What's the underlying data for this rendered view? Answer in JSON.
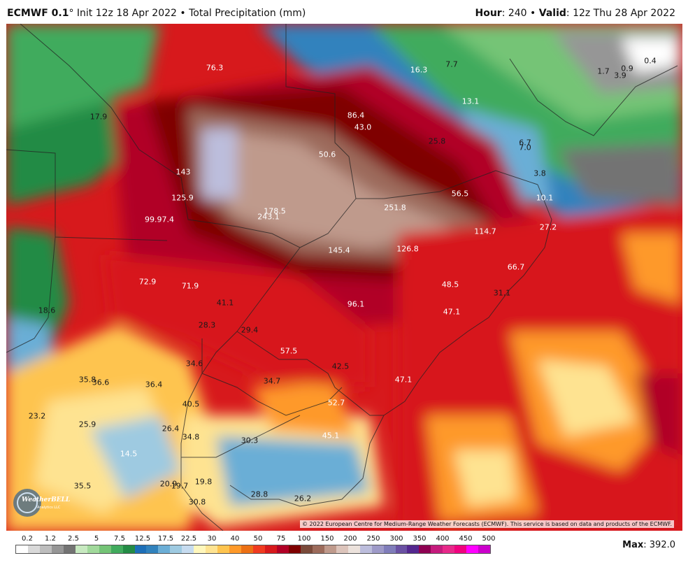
{
  "header": {
    "model": "ECMWF 0.1",
    "degree": "°",
    "init": " Init 12z 18 Apr 2022",
    "sep1": " • ",
    "product": "Total Precipitation (mm)",
    "hour_label": "Hour",
    "hour_value": ": 240",
    "sep2": " • ",
    "valid_label": "Valid",
    "valid_value": ": 12z Thu 28 Apr 2022"
  },
  "map": {
    "credit": "© 2022 European Centre for Medium-Range Weather Forecasts (ECMWF). This service is based on data and products of the ECMWF.",
    "logo_text": "WeatherBELL",
    "logo_sub": "Analytics LLC",
    "labels": [
      {
        "t": "76.3",
        "c": "light"
      },
      {
        "t": "16.3",
        "c": "light"
      },
      {
        "t": "7.7",
        "c": "dark"
      },
      {
        "t": "1.7",
        "c": "dark"
      },
      {
        "t": "0.9",
        "c": "dark"
      },
      {
        "t": "3.9",
        "c": "dark"
      },
      {
        "t": "0.4",
        "c": "dark"
      },
      {
        "t": "17.9",
        "c": "dark"
      },
      {
        "t": "86.4",
        "c": "light"
      },
      {
        "t": "43.0",
        "c": "light"
      },
      {
        "t": "13.1",
        "c": "light"
      },
      {
        "t": "25.8",
        "c": "dark"
      },
      {
        "t": "50.6",
        "c": "light"
      },
      {
        "t": "7.0",
        "c": "dark"
      },
      {
        "t": "6.7",
        "c": "dark"
      },
      {
        "t": "143",
        "c": "light"
      },
      {
        "t": "3.8",
        "c": "dark"
      },
      {
        "t": "56.5",
        "c": "light"
      },
      {
        "t": "125.9",
        "c": "light"
      },
      {
        "t": "178.5",
        "c": "light"
      },
      {
        "t": "251.8",
        "c": "light"
      },
      {
        "t": "10.1",
        "c": "light"
      },
      {
        "t": "99.97.4",
        "c": "light"
      },
      {
        "t": "243.1",
        "c": "light"
      },
      {
        "t": "114.7",
        "c": "light"
      },
      {
        "t": "27.2",
        "c": "light"
      },
      {
        "t": "145.4",
        "c": "light"
      },
      {
        "t": "126.8",
        "c": "light"
      },
      {
        "t": "66.7",
        "c": "light"
      },
      {
        "t": "72.9",
        "c": "light"
      },
      {
        "t": "71.9",
        "c": "light"
      },
      {
        "t": "48.5",
        "c": "light"
      },
      {
        "t": "31.1",
        "c": "dark"
      },
      {
        "t": "41.1",
        "c": "dark"
      },
      {
        "t": "96.1",
        "c": "light"
      },
      {
        "t": "47.1",
        "c": "light"
      },
      {
        "t": "18.6",
        "c": "dark"
      },
      {
        "t": "28.3",
        "c": "dark"
      },
      {
        "t": "29.4",
        "c": "dark"
      },
      {
        "t": "57.5",
        "c": "light"
      },
      {
        "t": "34.6",
        "c": "dark"
      },
      {
        "t": "42.5",
        "c": "dark"
      },
      {
        "t": "35.8",
        "c": "dark"
      },
      {
        "t": "36.6",
        "c": "dark"
      },
      {
        "t": "36.4",
        "c": "dark"
      },
      {
        "t": "34.7",
        "c": "dark"
      },
      {
        "t": "47.1",
        "c": "light"
      },
      {
        "t": "40.5",
        "c": "dark"
      },
      {
        "t": "52.7",
        "c": "light"
      },
      {
        "t": "23.2",
        "c": "dark"
      },
      {
        "t": "25.9",
        "c": "dark"
      },
      {
        "t": "26.4",
        "c": "dark"
      },
      {
        "t": "34.8",
        "c": "dark"
      },
      {
        "t": "30.3",
        "c": "dark"
      },
      {
        "t": "45.1",
        "c": "light"
      },
      {
        "t": "14.5",
        "c": "light"
      },
      {
        "t": "35.5",
        "c": "dark"
      },
      {
        "t": "20.9",
        "c": "dark"
      },
      {
        "t": "19.7",
        "c": "dark"
      },
      {
        "t": "19.8",
        "c": "dark"
      },
      {
        "t": "30.8",
        "c": "dark"
      },
      {
        "t": "28.8",
        "c": "dark"
      },
      {
        "t": "26.2",
        "c": "dark"
      }
    ]
  },
  "legend": {
    "ticks": [
      "0.2",
      "1.2",
      "2.5",
      "5",
      "7.5",
      "12.5",
      "17.5",
      "22.5",
      "30",
      "40",
      "50",
      "75",
      "100",
      "150",
      "200",
      "250",
      "300",
      "350",
      "400",
      "450",
      "500"
    ],
    "colors": [
      "#ffffff",
      "#d9d9d9",
      "#bdbdbd",
      "#969696",
      "#737373",
      "#c7e9c0",
      "#a1d99b",
      "#74c476",
      "#41ab5d",
      "#238b45",
      "#1d6fb8",
      "#3182bd",
      "#6baed6",
      "#9ecae1",
      "#c6dbef",
      "#fff7bc",
      "#fee391",
      "#fec44f",
      "#fe9929",
      "#ec7014",
      "#f03b20",
      "#d7191c",
      "#b10026",
      "#7f0000",
      "#7a4a3a",
      "#9c6b5b",
      "#bf9a8c",
      "#dcc4bb",
      "#ece2dc",
      "#bcbddc",
      "#9e9ac8",
      "#807dba",
      "#6a51a3",
      "#54278f",
      "#8e0152",
      "#c51b7d",
      "#e7298a",
      "#f0027f",
      "#ff00ff",
      "#cc00cc"
    ],
    "max_label": "Max",
    "max_value": ": 392.0"
  }
}
